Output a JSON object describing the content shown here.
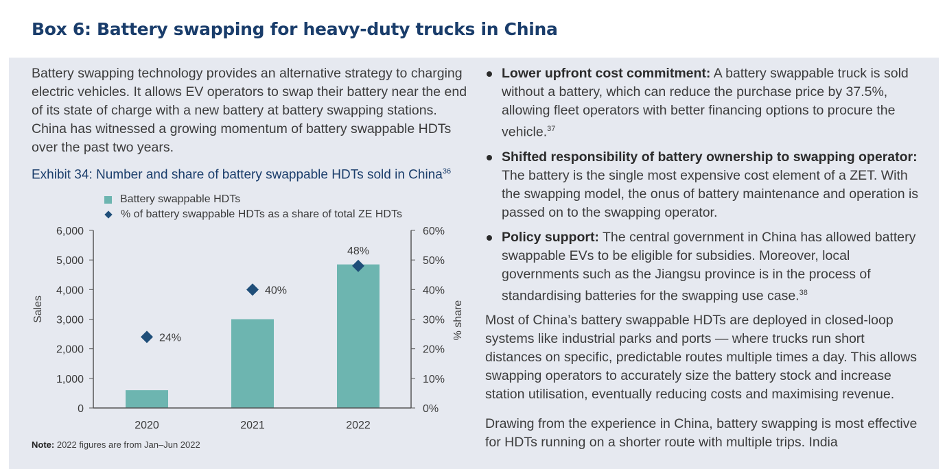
{
  "title": "Box 6: Battery swapping for heavy-duty trucks in China",
  "intro": "Battery swapping technology provides an alternative strategy to charging electric vehicles. It allows EV operators to swap their battery near the end of its state of charge with a new battery at battery swapping stations. China has witnessed a growing momentum of battery swappable HDTs over the past two years.",
  "exhibit": {
    "title": "Exhibit 34: Number and share of battery swappable HDTs sold in China",
    "footnote": "36"
  },
  "chart_data": {
    "type": "bar",
    "title": "Exhibit 34: Number and share of battery swappable HDTs sold in China",
    "categories": [
      "2020",
      "2021",
      "2022"
    ],
    "series": [
      {
        "name": "Battery swappable HDTs",
        "axis": "left",
        "type": "bar",
        "values": [
          600,
          3000,
          4850
        ]
      },
      {
        "name": "% of battery swappable HDTs as a share of total ZE HDTs",
        "axis": "right",
        "type": "marker",
        "values": [
          24,
          40,
          48
        ],
        "labels": [
          "24%",
          "40%",
          "48%"
        ]
      }
    ],
    "ylabel": "Sales",
    "ylabel_right": "% share",
    "ylim": [
      0,
      6000
    ],
    "ylim_right": [
      0,
      60
    ],
    "yticks": [
      "0",
      "1,000",
      "2,000",
      "3,000",
      "4,000",
      "5,000",
      "6,000"
    ],
    "yticks_right": [
      "0%",
      "10%",
      "20%",
      "30%",
      "40%",
      "50%",
      "60%"
    ],
    "legend": "top",
    "colors": {
      "bar": "#6db5b0",
      "marker": "#1f4e79"
    }
  },
  "note": {
    "label": "Note:",
    "text": "2022 figures are from Jan–Jun 2022"
  },
  "bullets": [
    {
      "bold": "Lower upfront cost commitment:",
      "text": " A battery swappable truck is sold without a battery, which can reduce the purchase price by 37.5%, allowing fleet operators with better financing options to procure the vehicle.",
      "ref": "37"
    },
    {
      "bold": "Shifted responsibility of battery ownership to swapping operator:",
      "text": " The battery is the single most expensive cost element of a ZET. With the swapping model, the onus of battery maintenance and operation is passed on to the swapping operator.",
      "ref": ""
    },
    {
      "bold": "Policy support:",
      "text": " The central government in China has allowed battery swappable EVs to be eligible for subsidies. Moreover, local governments such as the Jiangsu province is in the process of standardising batteries for the swapping use case.",
      "ref": "38"
    }
  ],
  "paragraphs": [
    "Most of China’s battery swappable HDTs are deployed in closed-loop systems like industrial parks and ports — where trucks run short distances on specific, predictable routes multiple times a day. This allows swapping operators to accurately size the battery stock and increase station utilisation, eventually reducing costs and maximising revenue.",
    "Drawing from the experience in China, battery swapping is most effective for HDTs running on a shorter route with multiple trips. India"
  ]
}
